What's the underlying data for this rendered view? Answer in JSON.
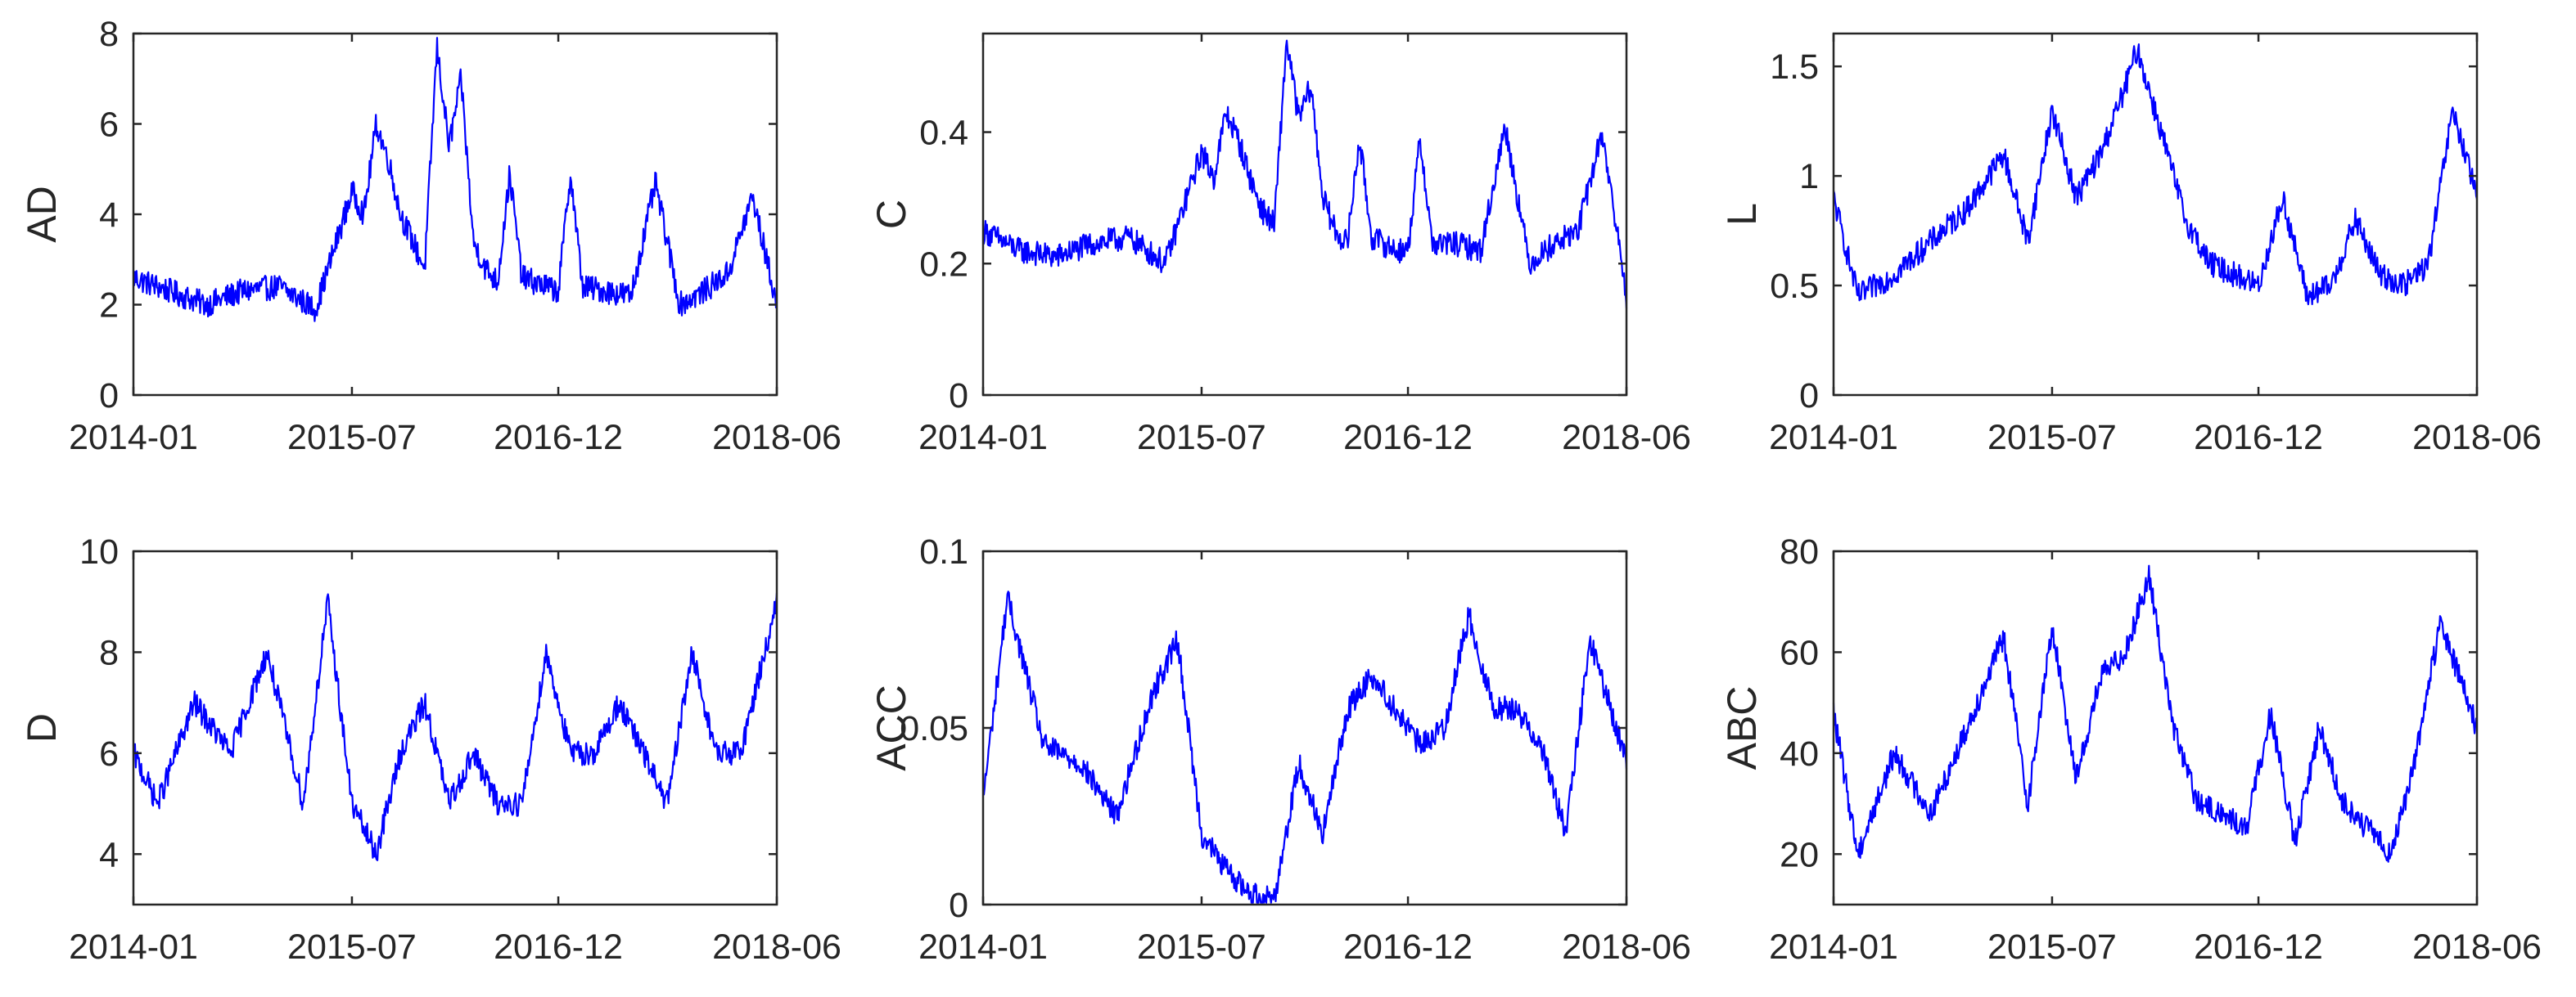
{
  "chart_data": [
    {
      "type": "line",
      "ylabel": "AD",
      "xlim": [
        "2014-01",
        "2018-06"
      ],
      "ylim": [
        0,
        8
      ],
      "yticks": [
        0,
        2,
        4,
        6,
        8
      ],
      "xticks": [
        "2014-01",
        "2015-07",
        "2016-12",
        "2018-06"
      ],
      "color": "#0000ff",
      "series": [
        {
          "x": [
            "2014-01",
            "2014-04",
            "2014-07",
            "2014-10",
            "2015-01",
            "2015-04",
            "2015-07",
            "2015-08",
            "2015-09",
            "2015-10",
            "2015-11",
            "2015-12",
            "2016-01",
            "2016-02",
            "2016-03",
            "2016-04",
            "2016-05",
            "2016-06",
            "2016-07",
            "2016-08",
            "2016-09",
            "2016-10",
            "2016-11",
            "2016-12",
            "2017-01",
            "2017-02",
            "2017-04",
            "2017-06",
            "2017-08",
            "2017-10",
            "2017-12",
            "2018-02",
            "2018-04",
            "2018-06"
          ],
          "values": [
            2.6,
            2.3,
            2.0,
            2.3,
            2.4,
            1.9,
            4.5,
            4.0,
            6.0,
            5.2,
            4.0,
            3.4,
            2.8,
            7.7,
            5.5,
            7.0,
            3.4,
            2.8,
            2.5,
            4.9,
            2.6,
            2.5,
            2.4,
            2.3,
            4.9,
            2.4,
            2.3,
            2.2,
            4.7,
            2.0,
            2.3,
            2.7,
            4.4,
            2.0
          ]
        }
      ]
    },
    {
      "type": "line",
      "ylabel": "C",
      "xlim": [
        "2014-01",
        "2018-06"
      ],
      "ylim": [
        0,
        0.55
      ],
      "yticks": [
        0,
        0.2,
        0.4
      ],
      "xticks": [
        "2014-01",
        "2015-07",
        "2016-12",
        "2018-06"
      ],
      "color": "#0000ff",
      "series": [
        {
          "x": [
            "2014-01",
            "2014-04",
            "2014-07",
            "2014-10",
            "2015-01",
            "2015-04",
            "2015-07",
            "2015-08",
            "2015-09",
            "2015-10",
            "2015-11",
            "2015-12",
            "2016-01",
            "2016-02",
            "2016-03",
            "2016-04",
            "2016-05",
            "2016-06",
            "2016-07",
            "2016-08",
            "2016-09",
            "2016-10",
            "2016-11",
            "2016-12",
            "2017-01",
            "2017-02",
            "2017-04",
            "2017-06",
            "2017-08",
            "2017-10",
            "2017-12",
            "2018-02",
            "2018-04",
            "2018-06"
          ],
          "values": [
            0.25,
            0.22,
            0.21,
            0.23,
            0.24,
            0.2,
            0.37,
            0.33,
            0.43,
            0.39,
            0.33,
            0.28,
            0.26,
            0.54,
            0.42,
            0.47,
            0.3,
            0.25,
            0.23,
            0.39,
            0.24,
            0.23,
            0.22,
            0.22,
            0.39,
            0.23,
            0.23,
            0.22,
            0.41,
            0.2,
            0.23,
            0.25,
            0.4,
            0.15
          ]
        }
      ]
    },
    {
      "type": "line",
      "ylabel": "L",
      "xlim": [
        "2014-01",
        "2018-06"
      ],
      "ylim": [
        0,
        1.65
      ],
      "yticks": [
        0,
        0.5,
        1,
        1.5
      ],
      "xticks": [
        "2014-01",
        "2015-07",
        "2016-12",
        "2018-06"
      ],
      "color": "#0000ff",
      "series": [
        {
          "x": [
            "2014-01",
            "2014-03",
            "2014-06",
            "2014-09",
            "2014-12",
            "2015-03",
            "2015-05",
            "2015-07",
            "2015-09",
            "2015-11",
            "2016-01",
            "2016-02",
            "2016-04",
            "2016-06",
            "2016-08",
            "2016-10",
            "2016-12",
            "2017-02",
            "2017-04",
            "2017-06",
            "2017-08",
            "2017-10",
            "2017-12",
            "2018-02",
            "2018-04",
            "2018-06"
          ],
          "values": [
            0.9,
            0.45,
            0.55,
            0.7,
            0.85,
            1.1,
            0.7,
            1.3,
            0.9,
            1.1,
            1.4,
            1.58,
            1.2,
            0.8,
            0.6,
            0.55,
            0.5,
            0.9,
            0.45,
            0.5,
            0.8,
            0.55,
            0.5,
            0.6,
            1.3,
            0.9
          ]
        }
      ]
    },
    {
      "type": "line",
      "ylabel": "D",
      "xlim": [
        "2014-01",
        "2018-06"
      ],
      "ylim": [
        3,
        10
      ],
      "yticks": [
        4,
        6,
        8,
        10
      ],
      "xticks": [
        "2014-01",
        "2015-07",
        "2016-12",
        "2018-06"
      ],
      "color": "#0000ff",
      "series": [
        {
          "x": [
            "2014-01",
            "2014-03",
            "2014-06",
            "2014-09",
            "2014-12",
            "2015-03",
            "2015-05",
            "2015-07",
            "2015-09",
            "2015-11",
            "2016-01",
            "2016-03",
            "2016-05",
            "2016-07",
            "2016-09",
            "2016-11",
            "2017-01",
            "2017-03",
            "2017-05",
            "2017-07",
            "2017-09",
            "2017-11",
            "2018-01",
            "2018-03",
            "2018-06"
          ],
          "values": [
            6,
            5,
            7,
            6,
            8,
            5,
            9,
            5,
            4,
            6,
            7,
            5,
            6,
            5,
            5,
            8,
            6,
            6,
            7,
            6,
            5,
            8,
            6,
            6,
            9
          ]
        }
      ]
    },
    {
      "type": "line",
      "ylabel": "ACC",
      "xlim": [
        "2014-01",
        "2018-06"
      ],
      "ylim": [
        0,
        0.1
      ],
      "yticks": [
        0,
        0.05,
        0.1
      ],
      "xticks": [
        "2014-01",
        "2015-07",
        "2016-12",
        "2018-06"
      ],
      "color": "#0000ff",
      "series": [
        {
          "x": [
            "2014-01",
            "2014-03",
            "2014-06",
            "2014-09",
            "2014-12",
            "2015-03",
            "2015-05",
            "2015-07",
            "2015-09",
            "2015-11",
            "2016-01",
            "2016-03",
            "2016-05",
            "2016-07",
            "2016-09",
            "2016-11",
            "2017-01",
            "2017-03",
            "2017-05",
            "2017-07",
            "2017-09",
            "2017-11",
            "2018-01",
            "2018-03",
            "2018-06"
          ],
          "values": [
            0.03,
            0.087,
            0.045,
            0.04,
            0.025,
            0.06,
            0.075,
            0.02,
            0.01,
            0.003,
            0.002,
            0.04,
            0.02,
            0.055,
            0.065,
            0.055,
            0.045,
            0.05,
            0.082,
            0.056,
            0.055,
            0.045,
            0.02,
            0.075,
            0.04
          ]
        }
      ]
    },
    {
      "type": "line",
      "ylabel": "ABC",
      "xlim": [
        "2014-01",
        "2018-06"
      ],
      "ylim": [
        10,
        80
      ],
      "yticks": [
        20,
        40,
        60,
        80
      ],
      "xticks": [
        "2014-01",
        "2015-07",
        "2016-12",
        "2018-06"
      ],
      "color": "#0000ff",
      "series": [
        {
          "x": [
            "2014-01",
            "2014-03",
            "2014-06",
            "2014-09",
            "2014-12",
            "2015-03",
            "2015-05",
            "2015-07",
            "2015-09",
            "2015-11",
            "2016-01",
            "2016-03",
            "2016-05",
            "2016-07",
            "2016-09",
            "2016-11",
            "2017-01",
            "2017-03",
            "2017-05",
            "2017-07",
            "2017-09",
            "2017-11",
            "2018-01",
            "2018-03",
            "2018-06"
          ],
          "values": [
            48,
            20,
            40,
            28,
            45,
            63,
            30,
            65,
            35,
            55,
            60,
            75,
            45,
            30,
            28,
            25,
            48,
            22,
            45,
            30,
            25,
            20,
            40,
            66,
            45
          ]
        }
      ]
    }
  ]
}
